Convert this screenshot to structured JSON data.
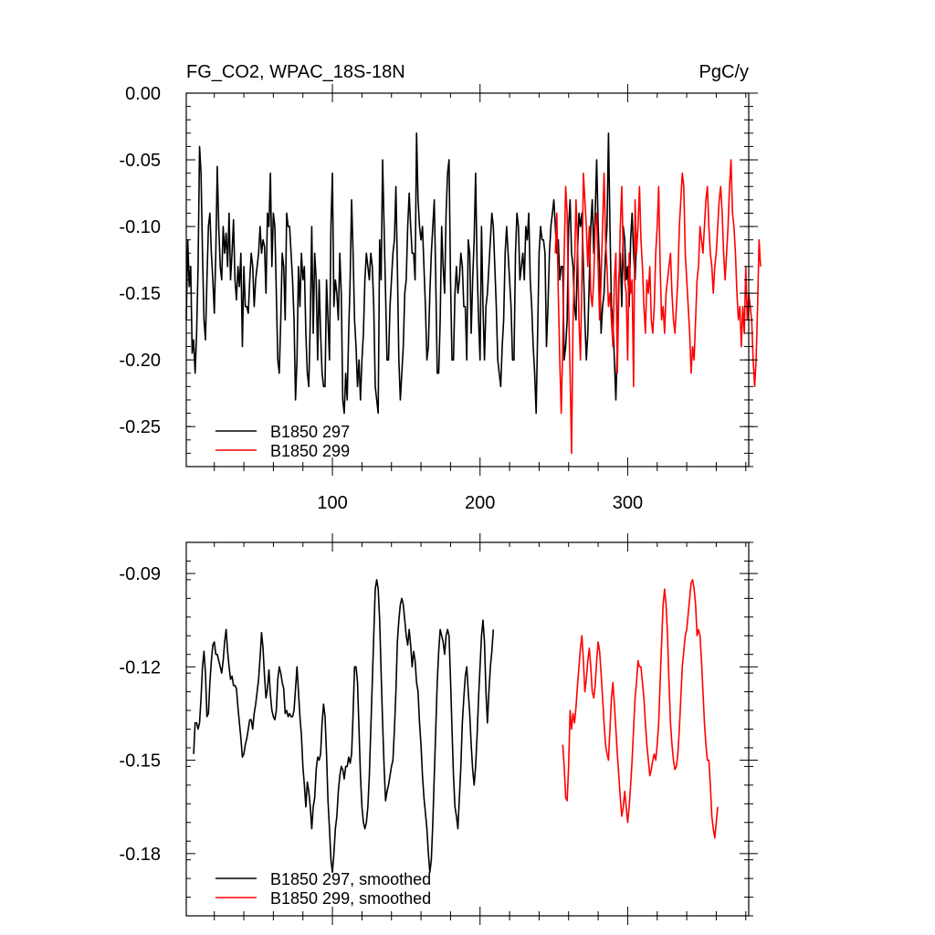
{
  "chart_data": [
    {
      "type": "line",
      "title_left": "FG_CO2, WPAC_18S-18N",
      "title_right": "PgC/y",
      "xlim": [
        1,
        382
      ],
      "ylim": [
        -0.28,
        0.0
      ],
      "xticks": [
        100,
        200,
        300
      ],
      "xticklabels": [
        "100",
        "200",
        "300"
      ],
      "yticks": [
        0.0,
        -0.05,
        -0.1,
        -0.15,
        -0.2,
        -0.25
      ],
      "yticklabels": [
        "0.00",
        "-0.05",
        "-0.10",
        "-0.15",
        "-0.20",
        "-0.25"
      ],
      "legend_position": "bottom-left",
      "series": [
        {
          "name": "B1850 297",
          "color": "#000000",
          "x_start": 1,
          "values": [
            -0.17,
            -0.11,
            -0.145,
            -0.13,
            -0.195,
            -0.185,
            -0.21,
            -0.18,
            -0.13,
            -0.04,
            -0.06,
            -0.12,
            -0.17,
            -0.185,
            -0.14,
            -0.1,
            -0.09,
            -0.12,
            -0.14,
            -0.165,
            -0.12,
            -0.055,
            -0.1,
            -0.13,
            -0.14,
            -0.1,
            -0.12,
            -0.105,
            -0.13,
            -0.09,
            -0.14,
            -0.12,
            -0.095,
            -0.14,
            -0.155,
            -0.13,
            -0.145,
            -0.12,
            -0.19,
            -0.13,
            -0.16,
            -0.16,
            -0.165,
            -0.14,
            -0.12,
            -0.13,
            -0.16,
            -0.14,
            -0.13,
            -0.12,
            -0.1,
            -0.12,
            -0.11,
            -0.115,
            -0.15,
            -0.09,
            -0.1,
            -0.06,
            -0.13,
            -0.09,
            -0.1,
            -0.15,
            -0.2,
            -0.21,
            -0.17,
            -0.12,
            -0.13,
            -0.17,
            -0.09,
            -0.1,
            -0.1,
            -0.12,
            -0.14,
            -0.17,
            -0.23,
            -0.2,
            -0.13,
            -0.16,
            -0.12,
            -0.14,
            -0.13,
            -0.18,
            -0.21,
            -0.22,
            -0.17,
            -0.1,
            -0.18,
            -0.12,
            -0.14,
            -0.2,
            -0.14,
            -0.18,
            -0.21,
            -0.22,
            -0.22,
            -0.14,
            -0.17,
            -0.2,
            -0.1,
            -0.06,
            -0.16,
            -0.14,
            -0.15,
            -0.17,
            -0.12,
            -0.15,
            -0.23,
            -0.24,
            -0.21,
            -0.23,
            -0.18,
            -0.14,
            -0.08,
            -0.12,
            -0.17,
            -0.19,
            -0.22,
            -0.2,
            -0.23,
            -0.2,
            -0.18,
            -0.14,
            -0.12,
            -0.13,
            -0.14,
            -0.12,
            -0.13,
            -0.16,
            -0.22,
            -0.23,
            -0.24,
            -0.11,
            -0.14,
            -0.05,
            -0.1,
            -0.15,
            -0.2,
            -0.2,
            -0.16,
            -0.14,
            -0.12,
            -0.11,
            -0.07,
            -0.13,
            -0.2,
            -0.23,
            -0.21,
            -0.19,
            -0.15,
            -0.14,
            -0.1,
            -0.075,
            -0.1,
            -0.12,
            -0.12,
            -0.14,
            -0.03,
            -0.08,
            -0.1,
            -0.11,
            -0.1,
            -0.13,
            -0.16,
            -0.2,
            -0.19,
            -0.15,
            -0.12,
            -0.1,
            -0.08,
            -0.14,
            -0.21,
            -0.21,
            -0.17,
            -0.1,
            -0.13,
            -0.15,
            -0.09,
            -0.06,
            -0.05,
            -0.14,
            -0.2,
            -0.2,
            -0.15,
            -0.13,
            -0.15,
            -0.14,
            -0.12,
            -0.13,
            -0.16,
            -0.16,
            -0.2,
            -0.11,
            -0.12,
            -0.18,
            -0.14,
            -0.11,
            -0.06,
            -0.13,
            -0.17,
            -0.2,
            -0.1,
            -0.16,
            -0.2,
            -0.16,
            -0.15,
            -0.13,
            -0.11,
            -0.09,
            -0.1,
            -0.13,
            -0.16,
            -0.2,
            -0.21,
            -0.22,
            -0.19,
            -0.17,
            -0.12,
            -0.1,
            -0.12,
            -0.14,
            -0.16,
            -0.2,
            -0.2,
            -0.12,
            -0.09,
            -0.1,
            -0.14,
            -0.13,
            -0.12,
            -0.14,
            -0.1,
            -0.11,
            -0.09,
            -0.14,
            -0.16,
            -0.19,
            -0.21,
            -0.24,
            -0.18,
            -0.12,
            -0.1,
            -0.11,
            -0.11,
            -0.12,
            -0.19,
            -0.16,
            -0.12,
            -0.1,
            -0.09,
            -0.08,
            -0.1,
            -0.12,
            -0.11,
            -0.14,
            -0.13,
            -0.13,
            -0.2,
            -0.19,
            -0.17,
            -0.1,
            -0.08,
            -0.12,
            -0.13,
            -0.16,
            -0.17,
            -0.12,
            -0.09,
            -0.1,
            -0.09,
            -0.13,
            -0.17,
            -0.2,
            -0.18,
            -0.14,
            -0.1,
            -0.08,
            -0.12,
            -0.09,
            -0.05,
            -0.1,
            -0.13,
            -0.18,
            -0.16,
            -0.15,
            -0.12,
            -0.1,
            -0.03,
            -0.1,
            -0.16,
            -0.17,
            -0.2,
            -0.23,
            -0.19,
            -0.14,
            -0.12,
            -0.16,
            -0.1,
            -0.11,
            -0.14,
            -0.13,
            -0.16,
            -0.11,
            -0.09,
            -0.12,
            -0.14,
            -0.11
          ]
        },
        {
          "name": "B1850 299",
          "color": "#ff0000",
          "x_start": 251,
          "values": [
            -0.12,
            -0.09,
            -0.15,
            -0.2,
            -0.24,
            -0.19,
            -0.12,
            -0.07,
            -0.09,
            -0.16,
            -0.21,
            -0.27,
            -0.17,
            -0.13,
            -0.08,
            -0.11,
            -0.17,
            -0.2,
            -0.14,
            -0.06,
            -0.08,
            -0.1,
            -0.13,
            -0.1,
            -0.15,
            -0.16,
            -0.14,
            -0.1,
            -0.09,
            -0.13,
            -0.17,
            -0.14,
            -0.1,
            -0.06,
            -0.11,
            -0.13,
            -0.16,
            -0.15,
            -0.17,
            -0.19,
            -0.14,
            -0.12,
            -0.21,
            -0.15,
            -0.1,
            -0.07,
            -0.12,
            -0.14,
            -0.15,
            -0.2,
            -0.12,
            -0.15,
            -0.14,
            -0.22,
            -0.08,
            -0.12,
            -0.1,
            -0.07,
            -0.11,
            -0.13,
            -0.16,
            -0.18,
            -0.14,
            -0.15,
            -0.13,
            -0.17,
            -0.18,
            -0.16,
            -0.12,
            -0.1,
            -0.07,
            -0.13,
            -0.17,
            -0.16,
            -0.18,
            -0.15,
            -0.14,
            -0.13,
            -0.12,
            -0.15,
            -0.17,
            -0.18,
            -0.16,
            -0.14,
            -0.1,
            -0.08,
            -0.06,
            -0.07,
            -0.12,
            -0.14,
            -0.16,
            -0.18,
            -0.21,
            -0.19,
            -0.2,
            -0.17,
            -0.14,
            -0.13,
            -0.1,
            -0.11,
            -0.12,
            -0.1,
            -0.08,
            -0.07,
            -0.1,
            -0.12,
            -0.13,
            -0.15,
            -0.13,
            -0.12,
            -0.1,
            -0.08,
            -0.07,
            -0.09,
            -0.12,
            -0.14,
            -0.12,
            -0.1,
            -0.07,
            -0.05,
            -0.09,
            -0.1,
            -0.12,
            -0.15,
            -0.17,
            -0.16,
            -0.19,
            -0.16,
            -0.18,
            -0.13,
            -0.17,
            -0.15,
            -0.16,
            -0.17,
            -0.2,
            -0.22,
            -0.2,
            -0.16,
            -0.11,
            -0.13
          ]
        }
      ]
    },
    {
      "type": "line",
      "title_left": "",
      "title_right": "",
      "xlim": [
        1,
        382
      ],
      "ylim": [
        -0.2,
        -0.08
      ],
      "xticks": [
        100,
        200,
        300
      ],
      "xticklabels": [],
      "yticks": [
        -0.09,
        -0.12,
        -0.15,
        -0.18
      ],
      "yticklabels": [
        "-0.09",
        "-0.12",
        "-0.15",
        "-0.18"
      ],
      "legend_position": "bottom-left",
      "series": [
        {
          "name": "B1850 297, smoothed",
          "color": "#000000",
          "x_start": 6,
          "values": [
            -0.148,
            -0.138,
            -0.138,
            -0.14,
            -0.138,
            -0.13,
            -0.12,
            -0.115,
            -0.122,
            -0.136,
            -0.135,
            -0.125,
            -0.118,
            -0.113,
            -0.112,
            -0.116,
            -0.116,
            -0.118,
            -0.12,
            -0.122,
            -0.118,
            -0.112,
            -0.108,
            -0.115,
            -0.12,
            -0.124,
            -0.123,
            -0.126,
            -0.126,
            -0.127,
            -0.133,
            -0.138,
            -0.143,
            -0.149,
            -0.148,
            -0.145,
            -0.143,
            -0.14,
            -0.137,
            -0.137,
            -0.14,
            -0.135,
            -0.132,
            -0.128,
            -0.124,
            -0.117,
            -0.109,
            -0.114,
            -0.123,
            -0.13,
            -0.127,
            -0.121,
            -0.129,
            -0.134,
            -0.136,
            -0.137,
            -0.134,
            -0.124,
            -0.12,
            -0.122,
            -0.125,
            -0.127,
            -0.135,
            -0.134,
            -0.136,
            -0.135,
            -0.136,
            -0.136,
            -0.134,
            -0.127,
            -0.12,
            -0.128,
            -0.136,
            -0.142,
            -0.152,
            -0.158,
            -0.165,
            -0.157,
            -0.16,
            -0.165,
            -0.172,
            -0.165,
            -0.162,
            -0.153,
            -0.149,
            -0.15,
            -0.148,
            -0.138,
            -0.132,
            -0.136,
            -0.148,
            -0.163,
            -0.172,
            -0.182,
            -0.186,
            -0.18,
            -0.172,
            -0.168,
            -0.16,
            -0.155,
            -0.152,
            -0.153,
            -0.156,
            -0.152,
            -0.152,
            -0.149,
            -0.151,
            -0.148,
            -0.135,
            -0.12,
            -0.12,
            -0.125,
            -0.14,
            -0.155,
            -0.165,
            -0.17,
            -0.172,
            -0.17,
            -0.165,
            -0.155,
            -0.14,
            -0.125,
            -0.11,
            -0.095,
            -0.092,
            -0.095,
            -0.105,
            -0.122,
            -0.138,
            -0.152,
            -0.163,
            -0.16,
            -0.158,
            -0.155,
            -0.152,
            -0.15,
            -0.14,
            -0.128,
            -0.112,
            -0.105,
            -0.1,
            -0.098,
            -0.1,
            -0.105,
            -0.11,
            -0.113,
            -0.108,
            -0.113,
            -0.12,
            -0.115,
            -0.118,
            -0.125,
            -0.128,
            -0.138,
            -0.145,
            -0.155,
            -0.162,
            -0.167,
            -0.172,
            -0.18,
            -0.186,
            -0.182,
            -0.17,
            -0.155,
            -0.14,
            -0.125,
            -0.115,
            -0.108,
            -0.11,
            -0.112,
            -0.116,
            -0.11,
            -0.108,
            -0.11,
            -0.124,
            -0.14,
            -0.155,
            -0.165,
            -0.168,
            -0.172,
            -0.162,
            -0.152,
            -0.138,
            -0.13,
            -0.123,
            -0.12,
            -0.128,
            -0.135,
            -0.145,
            -0.153,
            -0.158,
            -0.152,
            -0.142,
            -0.13,
            -0.12,
            -0.11,
            -0.105,
            -0.112,
            -0.128,
            -0.138,
            -0.128,
            -0.12,
            -0.115,
            -0.108
          ]
        },
        {
          "name": "B1850 299, smoothed",
          "color": "#ff0000",
          "x_start": 256,
          "values": [
            -0.145,
            -0.152,
            -0.162,
            -0.163,
            -0.152,
            -0.134,
            -0.14,
            -0.135,
            -0.138,
            -0.133,
            -0.126,
            -0.12,
            -0.114,
            -0.11,
            -0.118,
            -0.128,
            -0.124,
            -0.118,
            -0.114,
            -0.12,
            -0.128,
            -0.13,
            -0.126,
            -0.118,
            -0.112,
            -0.115,
            -0.122,
            -0.13,
            -0.138,
            -0.145,
            -0.148,
            -0.15,
            -0.14,
            -0.13,
            -0.125,
            -0.132,
            -0.14,
            -0.148,
            -0.155,
            -0.162,
            -0.168,
            -0.165,
            -0.16,
            -0.165,
            -0.17,
            -0.165,
            -0.158,
            -0.15,
            -0.14,
            -0.13,
            -0.125,
            -0.118,
            -0.12,
            -0.12,
            -0.125,
            -0.13,
            -0.138,
            -0.145,
            -0.15,
            -0.155,
            -0.153,
            -0.15,
            -0.148,
            -0.15,
            -0.145,
            -0.138,
            -0.125,
            -0.112,
            -0.1,
            -0.095,
            -0.1,
            -0.11,
            -0.125,
            -0.138,
            -0.145,
            -0.15,
            -0.153,
            -0.152,
            -0.148,
            -0.14,
            -0.13,
            -0.12,
            -0.115,
            -0.11,
            -0.108,
            -0.103,
            -0.098,
            -0.093,
            -0.092,
            -0.095,
            -0.1,
            -0.11,
            -0.108,
            -0.11,
            -0.118,
            -0.128,
            -0.138,
            -0.145,
            -0.15,
            -0.15,
            -0.158,
            -0.168,
            -0.172,
            -0.175,
            -0.17,
            -0.165
          ]
        }
      ]
    }
  ]
}
